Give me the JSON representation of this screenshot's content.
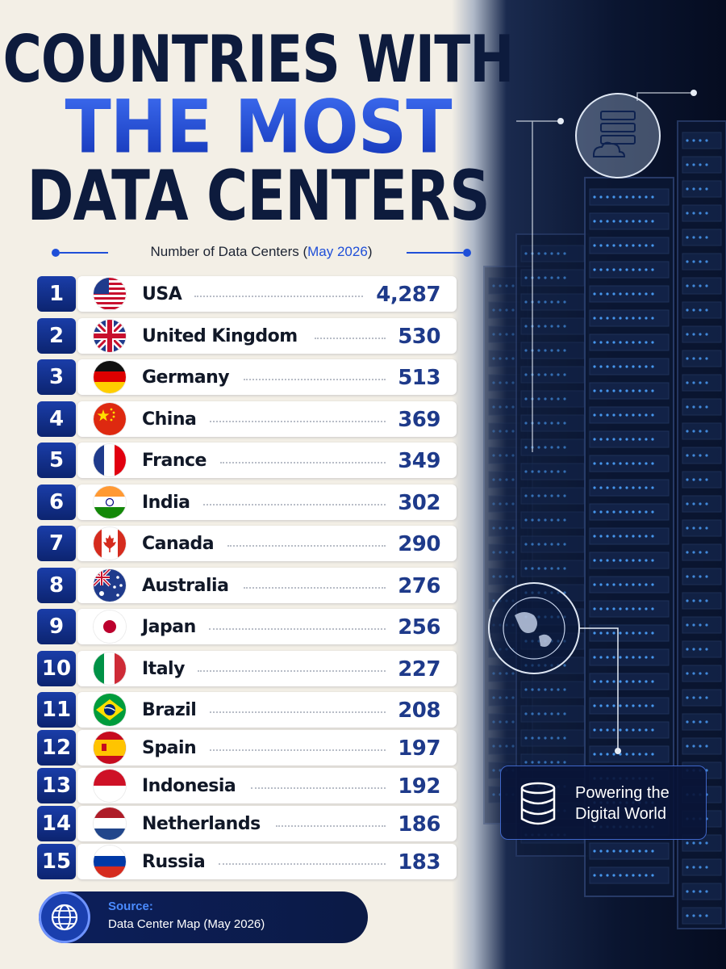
{
  "title": {
    "line1": "COUNTRIES WITH",
    "line2": "THE MOST",
    "line3": "DATA CENTERS"
  },
  "subtitle": {
    "prefix": "Number of Data Centers (",
    "date": "May 2026",
    "suffix": ")"
  },
  "chart_data": {
    "type": "table",
    "title": "COUNTRIES WITH THE MOST DATA CENTERS",
    "subtitle": "Number of Data Centers (May 2026)",
    "categories": [
      "USA",
      "United Kingdom",
      "Germany",
      "China",
      "France",
      "India",
      "Canada",
      "Australia",
      "Japan",
      "Italy",
      "Brazil",
      "Spain",
      "Indonesia",
      "Netherlands",
      "Russia"
    ],
    "ranks": [
      "1",
      "2",
      "3",
      "4",
      "5",
      "6",
      "7",
      "8",
      "9",
      "10",
      "11",
      "12",
      "13",
      "14",
      "15"
    ],
    "values": [
      4287,
      530,
      513,
      369,
      349,
      302,
      290,
      276,
      256,
      227,
      208,
      197,
      192,
      186,
      183
    ],
    "value_labels": [
      "4,287",
      "530",
      "513",
      "369",
      "349",
      "302",
      "290",
      "276",
      "256",
      "227",
      "208",
      "197",
      "192",
      "186",
      "183"
    ],
    "flag_icons": [
      "usa-flag-icon",
      "uk-flag-icon",
      "germany-flag-icon",
      "china-flag-icon",
      "france-flag-icon",
      "india-flag-icon",
      "canada-flag-icon",
      "australia-flag-icon",
      "japan-flag-icon",
      "italy-flag-icon",
      "brazil-flag-icon",
      "spain-flag-icon",
      "indonesia-flag-icon",
      "netherlands-flag-icon",
      "russia-flag-icon"
    ]
  },
  "source": {
    "label": "Source:",
    "text": "Data Center Map (May 2026)",
    "icon": "globe-icon"
  },
  "callout": {
    "line1": "Powering the",
    "line2": "Digital World",
    "icon": "database-icon"
  },
  "colors": {
    "navy": "#0d1b3d",
    "accent_blue": "#1f4fd8",
    "rank_badge": "#0c2470",
    "value_text": "#1e3a8a"
  }
}
